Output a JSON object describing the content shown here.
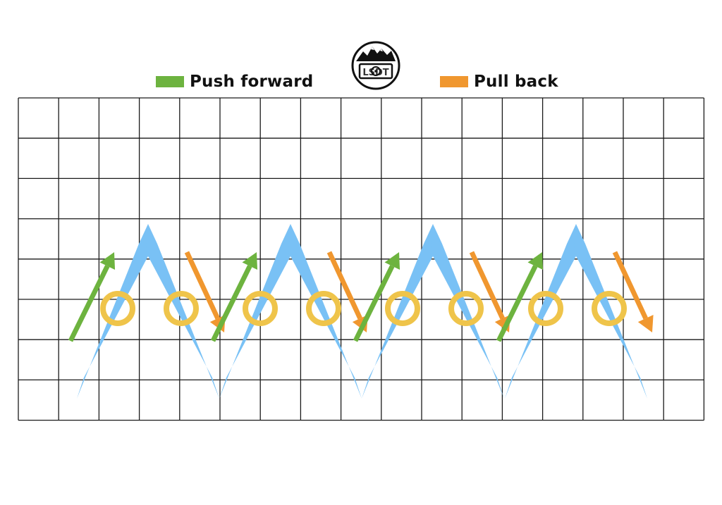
{
  "legend": {
    "push": {
      "label": "Push forward",
      "color": "#6db33f",
      "icon": "green-swatch"
    },
    "pull": {
      "label": "Pull back",
      "color": "#f0972f",
      "icon": "orange-swatch"
    }
  },
  "logo": {
    "icon": "mountain-disc-logo",
    "text": "LSDT"
  },
  "grid": {
    "columns": 17,
    "rows": 8,
    "line_color": "#1a1a1a"
  },
  "zigzag": {
    "color": "#79c1f5",
    "peaks": 4,
    "icon": "zigzag-stroke"
  },
  "circles": {
    "color": "#efc44a",
    "count": 8,
    "icon": "ring-marker"
  },
  "arrows": {
    "push_color": "#6db33f",
    "pull_color": "#f0972f",
    "push_count": 4,
    "pull_count": 4,
    "icon": "arrow"
  }
}
